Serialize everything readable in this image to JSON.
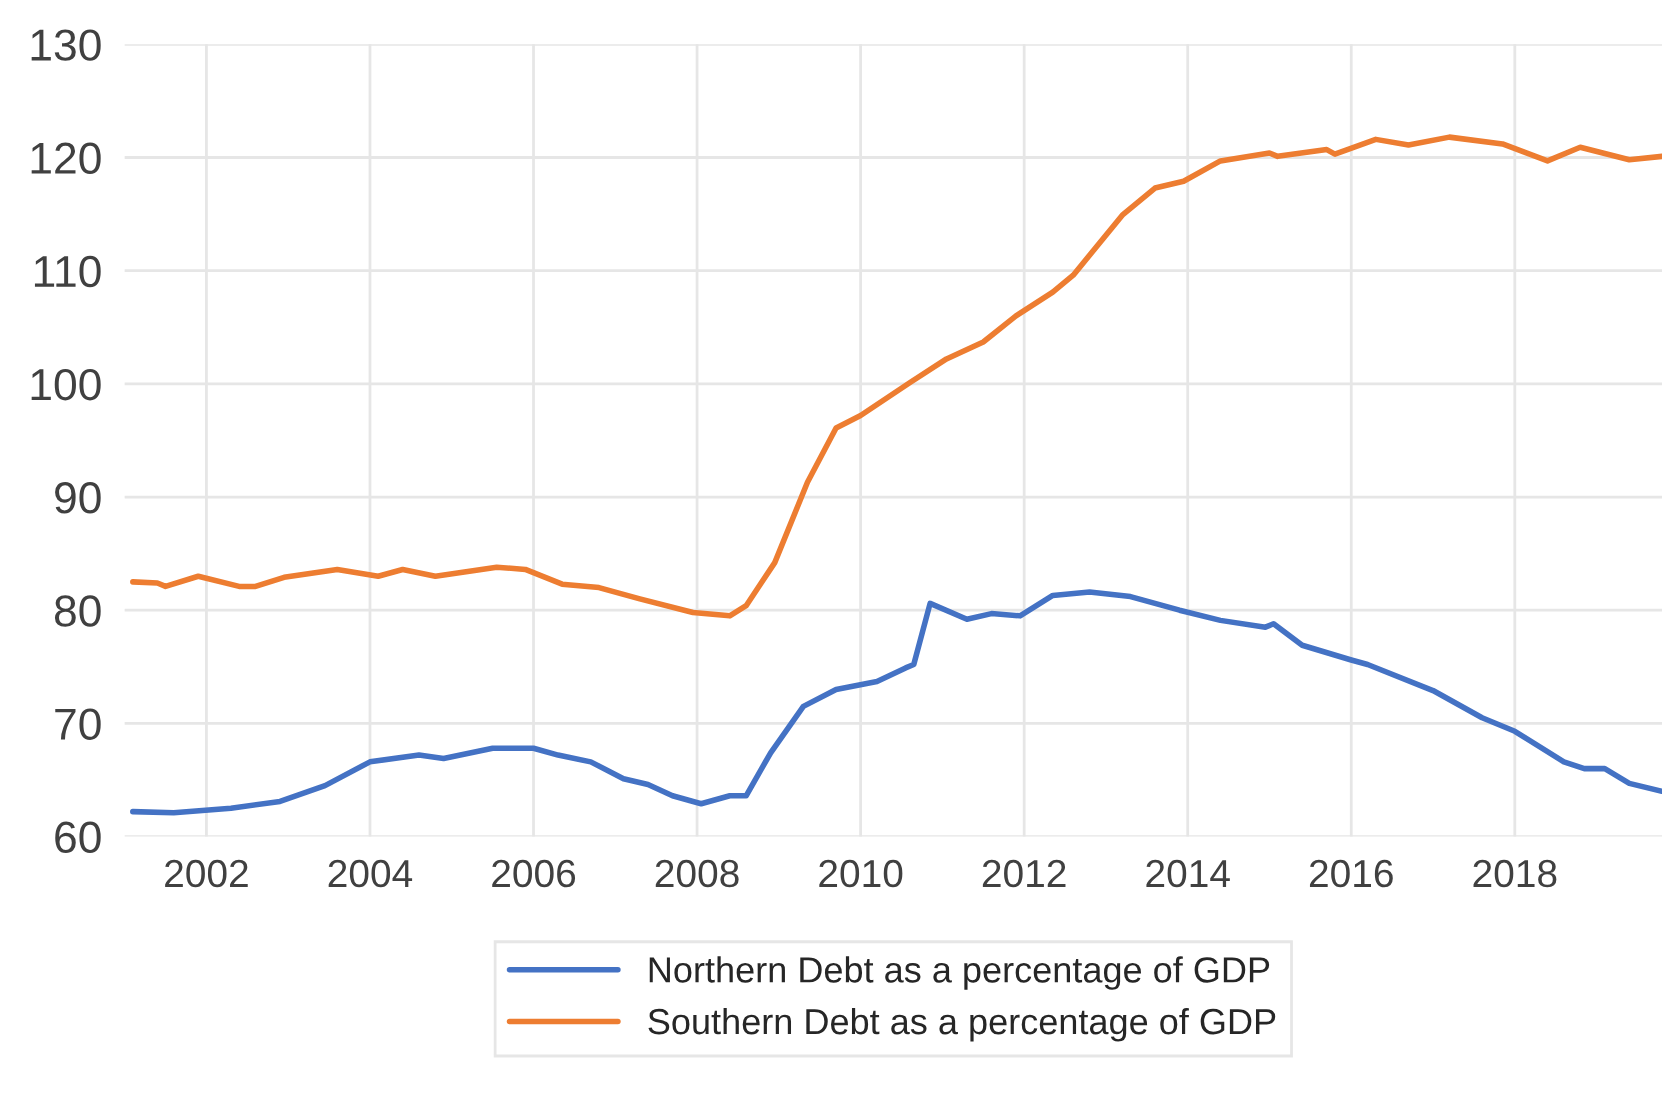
{
  "chart_data": {
    "type": "line",
    "xlim": [
      2001.0,
      2019.8
    ],
    "xticks": [
      2002,
      2004,
      2006,
      2008,
      2010,
      2012,
      2014,
      2016,
      2018
    ],
    "ylim": [
      60,
      130
    ],
    "yticks": [
      60,
      70,
      80,
      90,
      100,
      110,
      120,
      130
    ],
    "grid": true,
    "legend": "bottom",
    "marker": "none",
    "line_style": "solid",
    "series": [
      {
        "name": "Northern Debt as a percentage of GDP",
        "color": "#4472c4",
        "x": [
          2001.1,
          2001.6,
          2002.3,
          2002.9,
          2003.45,
          2004.0,
          2004.6,
          2004.9,
          2005.5,
          2006.0,
          2006.3,
          2006.7,
          2007.1,
          2007.4,
          2007.7,
          2008.05,
          2008.4,
          2008.6,
          2008.9,
          2009.3,
          2009.7,
          2010.2,
          2010.55,
          2010.65,
          2010.85,
          2011.3,
          2011.6,
          2011.95,
          2012.35,
          2012.8,
          2013.3,
          2013.9,
          2014.4,
          2014.95,
          2015.05,
          2015.4,
          2016.0,
          2016.2,
          2017.0,
          2017.6,
          2018.0,
          2018.6,
          2018.85,
          2019.1,
          2019.4,
          2019.8
        ],
        "values": [
          62.2,
          62.1,
          62.5,
          63.1,
          64.5,
          66.6,
          67.2,
          66.9,
          67.8,
          67.8,
          67.2,
          66.6,
          65.1,
          64.6,
          63.6,
          62.9,
          63.6,
          63.6,
          67.4,
          71.5,
          73.0,
          73.7,
          74.9,
          75.2,
          80.6,
          79.2,
          79.7,
          79.5,
          81.3,
          81.6,
          81.2,
          80.0,
          79.1,
          78.5,
          78.8,
          76.9,
          75.6,
          75.2,
          72.9,
          70.5,
          69.3,
          66.6,
          66.0,
          66.0,
          64.7,
          64.0
        ]
      },
      {
        "name": "Southern Debt as a percentage of GDP",
        "color": "#ed7d31",
        "x": [
          2001.1,
          2001.4,
          2001.5,
          2001.9,
          2002.4,
          2002.6,
          2002.95,
          2003.6,
          2004.1,
          2004.4,
          2004.8,
          2005.55,
          2005.9,
          2006.35,
          2006.8,
          2007.3,
          2007.95,
          2008.4,
          2008.6,
          2008.95,
          2009.35,
          2009.7,
          2010.0,
          2010.6,
          2011.05,
          2011.5,
          2011.9,
          2012.35,
          2012.6,
          2013.2,
          2013.6,
          2013.95,
          2014.4,
          2015.0,
          2015.1,
          2015.7,
          2015.8,
          2016.3,
          2016.7,
          2017.2,
          2017.85,
          2018.4,
          2018.8,
          2019.4,
          2019.8
        ],
        "values": [
          82.5,
          82.4,
          82.1,
          83.0,
          82.1,
          82.1,
          82.9,
          83.6,
          83.0,
          83.6,
          83.0,
          83.8,
          83.6,
          82.3,
          82.0,
          81.0,
          79.8,
          79.5,
          80.4,
          84.2,
          91.3,
          96.1,
          97.2,
          100.1,
          102.2,
          103.7,
          106.0,
          108.1,
          109.6,
          114.9,
          117.3,
          117.9,
          119.7,
          120.4,
          120.1,
          120.7,
          120.3,
          121.6,
          121.1,
          121.8,
          121.2,
          119.7,
          120.9,
          119.8,
          120.1
        ]
      }
    ]
  }
}
